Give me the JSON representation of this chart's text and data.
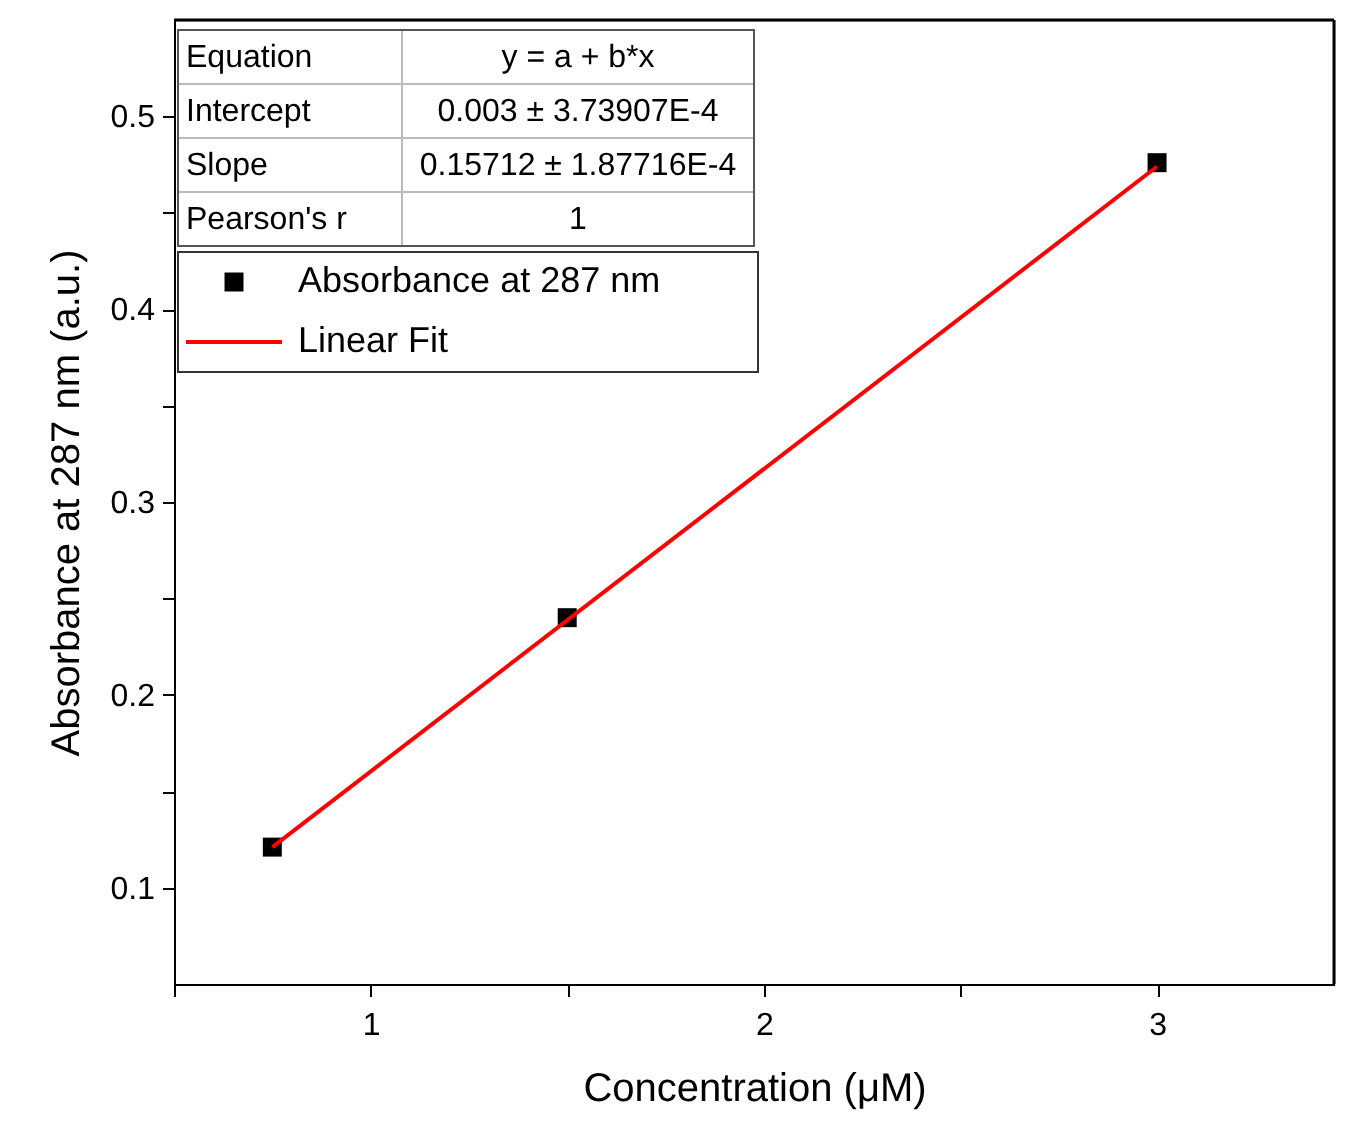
{
  "chart_data": {
    "type": "scatter",
    "xlabel": "Concentration (μM)",
    "ylabel": "Absorbance at 287 nm (a.u.)",
    "xlim": [
      0.5,
      3.45
    ],
    "ylim": [
      0.05,
      0.55
    ],
    "xticks": [
      {
        "value": 0.5,
        "label": null
      },
      1,
      {
        "value": 1.5,
        "label": null
      },
      2,
      {
        "value": 2.5,
        "label": null
      },
      3
    ],
    "yticks": [
      0.1,
      {
        "value": 0.15,
        "label": null
      },
      0.2,
      {
        "value": 0.25,
        "label": null
      },
      0.3,
      {
        "value": 0.35,
        "label": null
      },
      0.4,
      {
        "value": 0.45,
        "label": null
      },
      0.5
    ],
    "marker": "square",
    "legend": "top left",
    "grid": false,
    "series": [
      {
        "name": "Absorbance at 287 nm",
        "color": "#000000",
        "x": [
          0.75,
          1.5,
          3.0
        ],
        "values": [
          0.121,
          0.24,
          0.476
        ]
      },
      {
        "name": "Linear Fit",
        "type": "line",
        "color": "#ff0000",
        "line_style": "solid",
        "marker": "none",
        "x": [
          0.75,
          3.0
        ],
        "values": [
          0.121,
          0.474
        ]
      }
    ],
    "annotations": [
      "Equation",
      "y = a + b*x",
      "Intercept",
      "0.003 ± 3.73907E-4",
      "Slope",
      "0.15712 ± 1.87716E-4",
      "Pearson's r",
      "1"
    ]
  }
}
